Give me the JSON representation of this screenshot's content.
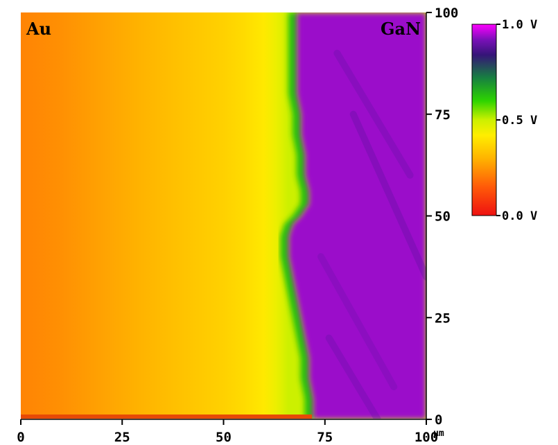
{
  "chart_data": {
    "type": "heatmap",
    "title": "",
    "xlabel": "",
    "ylabel": "",
    "x_unit": "µm",
    "xlim": [
      0,
      100
    ],
    "ylim": [
      0,
      100
    ],
    "x_ticks": [
      "0",
      "25",
      "50",
      "75",
      "100"
    ],
    "y_ticks": [
      "0",
      "25",
      "50",
      "75",
      "100"
    ],
    "annotations": [
      {
        "text": "Au",
        "position": "top-left"
      },
      {
        "text": "GaN",
        "position": "top-right"
      }
    ],
    "colorbar": {
      "range": [
        0.0,
        1.0
      ],
      "unit": "V",
      "tick_labels": [
        "0.0 V",
        "0.5 V",
        "1.0 V"
      ],
      "colors": [
        {
          "value": 0.0,
          "color": "#ee1111"
        },
        {
          "value": 0.15,
          "color": "#ff5a08"
        },
        {
          "value": 0.3,
          "color": "#ffb400"
        },
        {
          "value": 0.42,
          "color": "#ffee00"
        },
        {
          "value": 0.5,
          "color": "#ccf000"
        },
        {
          "value": 0.6,
          "color": "#2dd400"
        },
        {
          "value": 0.72,
          "color": "#178040"
        },
        {
          "value": 0.84,
          "color": "#351478"
        },
        {
          "value": 0.92,
          "color": "#7a10b8"
        },
        {
          "value": 1.0,
          "color": "#ff00ff"
        }
      ]
    },
    "boundary": {
      "description_values": "x position (µm) of the Au/GaN boundary at each y (µm)",
      "points": [
        {
          "y": 0,
          "x": 71
        },
        {
          "y": 5,
          "x": 71
        },
        {
          "y": 10,
          "x": 70
        },
        {
          "y": 15,
          "x": 70
        },
        {
          "y": 20,
          "x": 69
        },
        {
          "y": 25,
          "x": 68
        },
        {
          "y": 30,
          "x": 67
        },
        {
          "y": 35,
          "x": 66
        },
        {
          "y": 40,
          "x": 65
        },
        {
          "y": 45,
          "x": 65
        },
        {
          "y": 48,
          "x": 66
        },
        {
          "y": 50,
          "x": 68
        },
        {
          "y": 53,
          "x": 70
        },
        {
          "y": 56,
          "x": 70
        },
        {
          "y": 60,
          "x": 69
        },
        {
          "y": 65,
          "x": 69
        },
        {
          "y": 70,
          "x": 68
        },
        {
          "y": 75,
          "x": 68
        },
        {
          "y": 80,
          "x": 67
        },
        {
          "y": 85,
          "x": 67
        },
        {
          "y": 90,
          "x": 67
        },
        {
          "y": 95,
          "x": 67
        },
        {
          "y": 100,
          "x": 67
        }
      ]
    },
    "surface_profile": {
      "description_values": "potential (V) vs x (µm) across the Au side",
      "x": [
        0,
        10,
        20,
        30,
        40,
        50,
        55,
        60,
        63,
        66
      ],
      "v": [
        0.22,
        0.24,
        0.27,
        0.3,
        0.33,
        0.36,
        0.38,
        0.41,
        0.45,
        0.5
      ],
      "gan_level": 0.94
    }
  }
}
